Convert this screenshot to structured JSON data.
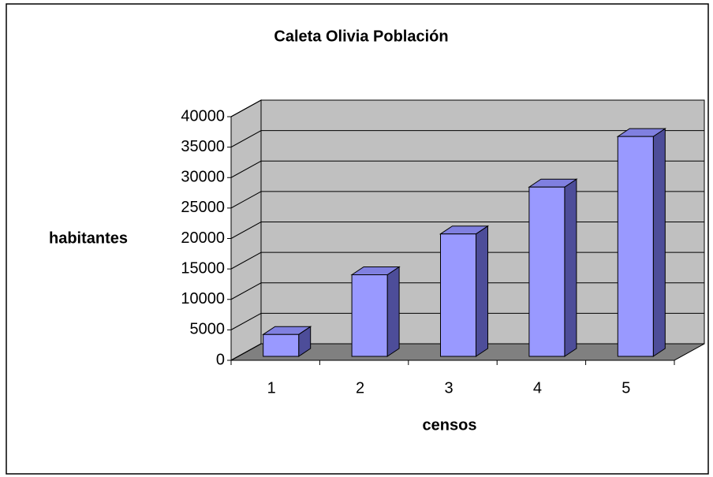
{
  "chart_data": {
    "type": "bar3d",
    "title": "Caleta Olivia Población",
    "y_label": "habitantes",
    "x_label": "censos",
    "categories": [
      "1",
      "2",
      "3",
      "4",
      "5"
    ],
    "values": [
      3600,
      13400,
      20100,
      27800,
      36100
    ],
    "color": "#9999ff",
    "ylim": [
      0,
      40000
    ],
    "yticks": [
      0,
      5000,
      10000,
      15000,
      20000,
      25000,
      30000,
      35000,
      40000
    ],
    "grid": true
  }
}
